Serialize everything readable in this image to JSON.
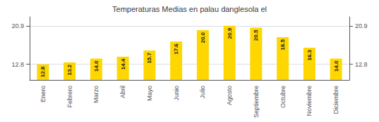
{
  "chart_data": {
    "type": "bar",
    "title": "Temperaturas Medias en palau danglesola el",
    "categories": [
      "Enero",
      "Febrero",
      "Marzo",
      "Abril",
      "Mayo",
      "Junio",
      "Julio",
      "Agosto",
      "Septiembre",
      "Octubre",
      "Noviembre",
      "Diciembre"
    ],
    "values": [
      12.8,
      13.2,
      14.0,
      14.4,
      15.7,
      17.6,
      20.0,
      20.9,
      20.5,
      18.5,
      16.3,
      14.0
    ],
    "value_labels": [
      "12.8",
      "13.2",
      "14.0",
      "14.4",
      "15.7",
      "17.6",
      "20.0",
      "20.9",
      "20.5",
      "18.5",
      "16.3",
      "14.0"
    ],
    "data_labels": true,
    "color": "#FFD700",
    "ylim": [
      9.5,
      22.8
    ],
    "yticks": [
      12.8,
      20.9
    ],
    "y2lim": [
      9.5,
      22.8
    ],
    "y2ticks": [
      12.8,
      20.9
    ],
    "grid": true
  }
}
